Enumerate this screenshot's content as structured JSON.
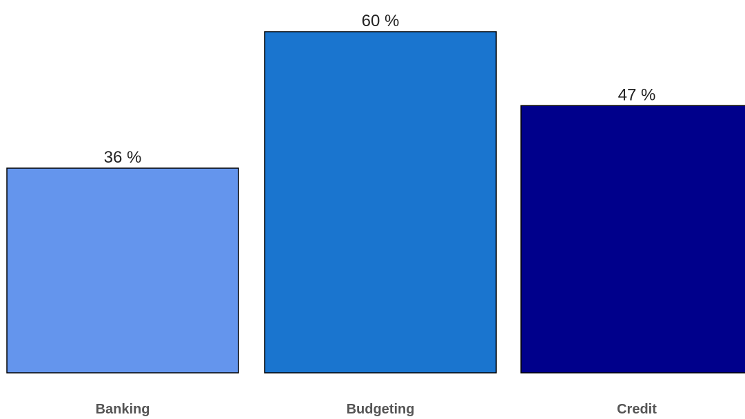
{
  "chart_data": {
    "type": "bar",
    "categories": [
      "Banking",
      "Budgeting",
      "Credit"
    ],
    "values": [
      36,
      60,
      47
    ],
    "value_labels": [
      "36 %",
      "60 %",
      "47 %"
    ],
    "colors": [
      "#6495ED",
      "#1A75CF",
      "#00008B"
    ],
    "title": "",
    "xlabel": "",
    "ylabel": "",
    "ylim": [
      0,
      60
    ],
    "grid": false,
    "legend": false
  }
}
